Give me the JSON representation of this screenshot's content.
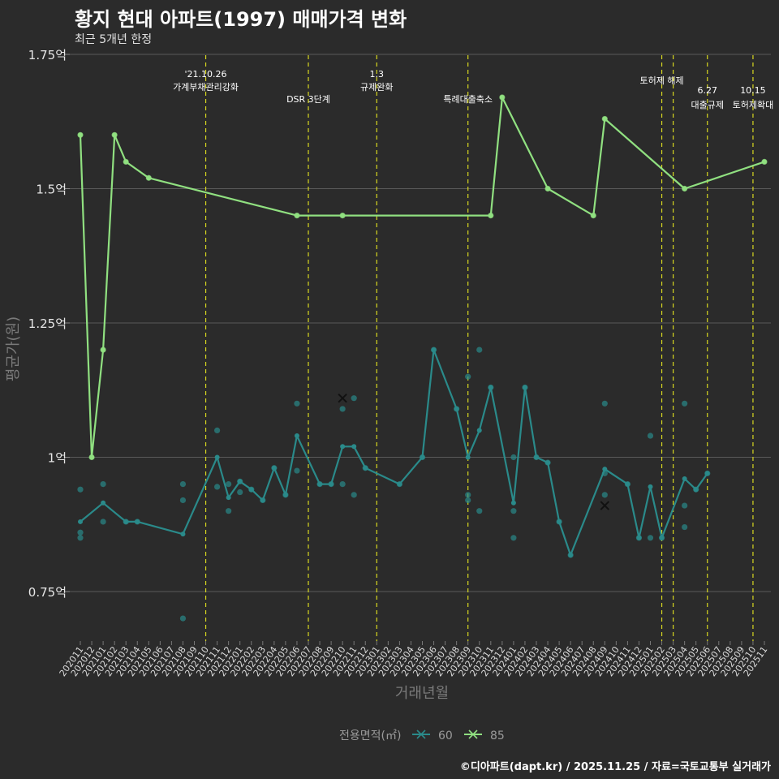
{
  "header": {
    "title": "황지 현대 아파트(1997) 매매가격 변화",
    "subtitle": "최근 5개년 한정"
  },
  "caption": "©디아파트(dapt.kr) / 2025.11.25 / 자료=국토교통부 실거래가",
  "chart_data": {
    "type": "line",
    "title": "황지 현대 아파트(1997) 매매가격 변화",
    "subtitle": "최근 5개년 한정",
    "xlabel": "거래년월",
    "ylabel": "평균가(원)",
    "ylim": [
      0.655,
      1.75
    ],
    "y_ticks": [
      {
        "value": 0.75,
        "label": "0.75억"
      },
      {
        "value": 1.0,
        "label": "1억"
      },
      {
        "value": 1.25,
        "label": "1.25억"
      },
      {
        "value": 1.5,
        "label": "1.5억"
      },
      {
        "value": 1.75,
        "label": "1.75억"
      }
    ],
    "categories": [
      "202011",
      "202012",
      "202101",
      "202102",
      "202103",
      "202104",
      "202105",
      "202106",
      "202107",
      "202108",
      "202109",
      "202110",
      "202111",
      "202112",
      "202201",
      "202202",
      "202203",
      "202204",
      "202205",
      "202206",
      "202207",
      "202208",
      "202209",
      "202210",
      "202211",
      "202212",
      "202301",
      "202302",
      "202303",
      "202304",
      "202305",
      "202306",
      "202307",
      "202308",
      "202309",
      "202310",
      "202311",
      "202312",
      "202401",
      "202402",
      "202403",
      "202404",
      "202405",
      "202406",
      "202407",
      "202408",
      "202409",
      "202410",
      "202411",
      "202412",
      "202501",
      "202502",
      "202503",
      "202504",
      "202505",
      "202506",
      "202507",
      "202508",
      "202509",
      "202510",
      "202511"
    ],
    "legend_title": "전용면적(㎡)",
    "series": [
      {
        "name": "60",
        "color": "#2a8a8a",
        "line": [
          [
            0,
            0.88
          ],
          [
            2,
            0.915
          ],
          [
            4,
            0.88
          ],
          [
            5,
            0.88
          ],
          [
            9,
            0.857
          ],
          [
            12,
            1.0
          ],
          [
            13,
            0.925
          ],
          [
            14,
            0.955
          ],
          [
            15,
            0.94
          ],
          [
            16,
            0.92
          ],
          [
            17,
            0.98
          ],
          [
            18,
            0.93
          ],
          [
            19,
            1.04
          ],
          [
            21,
            0.95
          ],
          [
            22,
            0.95
          ],
          [
            23,
            1.02
          ],
          [
            24,
            1.02
          ],
          [
            25,
            0.98
          ],
          [
            28,
            0.95
          ],
          [
            30,
            1.0
          ],
          [
            31,
            1.2
          ],
          [
            33,
            1.09
          ],
          [
            34,
            1.0
          ],
          [
            35,
            1.05
          ],
          [
            36,
            1.13
          ],
          [
            38,
            0.915
          ],
          [
            39,
            1.13
          ],
          [
            40,
            1.0
          ],
          [
            41,
            0.99
          ],
          [
            42,
            0.88
          ],
          [
            43,
            0.818
          ],
          [
            46,
            0.978
          ],
          [
            48,
            0.95
          ],
          [
            49,
            0.85
          ],
          [
            50,
            0.945
          ],
          [
            51,
            0.85
          ],
          [
            53,
            0.96
          ],
          [
            54,
            0.94
          ],
          [
            55,
            0.97
          ]
        ],
        "points": [
          [
            0,
            0.94
          ],
          [
            0,
            0.86
          ],
          [
            0,
            0.85
          ],
          [
            2,
            0.95
          ],
          [
            2,
            0.88
          ],
          [
            4,
            0.88
          ],
          [
            5,
            0.88
          ],
          [
            9,
            0.95
          ],
          [
            9,
            0.92
          ],
          [
            9,
            0.7
          ],
          [
            12,
            1.05
          ],
          [
            12,
            0.945
          ],
          [
            13,
            0.95
          ],
          [
            13,
            0.9
          ],
          [
            14,
            0.955
          ],
          [
            14,
            0.935
          ],
          [
            15,
            0.94
          ],
          [
            16,
            0.92
          ],
          [
            17,
            0.98
          ],
          [
            18,
            0.93
          ],
          [
            19,
            1.1
          ],
          [
            19,
            0.975
          ],
          [
            21,
            0.95
          ],
          [
            22,
            0.95
          ],
          [
            23,
            0.95
          ],
          [
            23,
            1.09
          ],
          [
            24,
            1.11
          ],
          [
            24,
            0.93
          ],
          [
            25,
            0.98
          ],
          [
            28,
            0.95
          ],
          [
            30,
            1.0
          ],
          [
            31,
            1.2
          ],
          [
            33,
            1.09
          ],
          [
            34,
            1.15
          ],
          [
            34,
            0.93
          ],
          [
            34,
            0.92
          ],
          [
            35,
            1.2
          ],
          [
            35,
            0.9
          ],
          [
            36,
            1.13
          ],
          [
            38,
            1.0
          ],
          [
            38,
            0.9
          ],
          [
            38,
            0.85
          ],
          [
            39,
            1.13
          ],
          [
            40,
            1.0
          ],
          [
            41,
            0.99
          ],
          [
            42,
            0.88
          ],
          [
            43,
            0.818
          ],
          [
            46,
            1.1
          ],
          [
            46,
            0.97
          ],
          [
            46,
            0.93
          ],
          [
            48,
            0.95
          ],
          [
            49,
            0.85
          ],
          [
            50,
            1.04
          ],
          [
            50,
            0.85
          ],
          [
            51,
            0.85
          ],
          [
            53,
            1.1
          ],
          [
            53,
            0.91
          ],
          [
            53,
            0.87
          ],
          [
            54,
            0.94
          ],
          [
            55,
            0.97
          ]
        ],
        "cancelled": [
          [
            23,
            1.11
          ],
          [
            46,
            0.91
          ]
        ]
      },
      {
        "name": "85",
        "color": "#90e080",
        "line": [
          [
            0,
            1.6
          ],
          [
            1,
            1.0
          ],
          [
            2,
            1.2
          ],
          [
            3,
            1.6
          ],
          [
            4,
            1.55
          ],
          [
            6,
            1.52
          ],
          [
            19,
            1.45
          ],
          [
            23,
            1.45
          ],
          [
            36,
            1.45
          ],
          [
            37,
            1.67
          ],
          [
            41,
            1.5
          ],
          [
            45,
            1.45
          ],
          [
            46,
            1.63
          ],
          [
            53,
            1.5
          ],
          [
            60,
            1.55
          ]
        ],
        "points": [
          [
            0,
            1.6
          ],
          [
            1,
            1.0
          ],
          [
            2,
            1.2
          ],
          [
            3,
            1.6
          ],
          [
            4,
            1.55
          ],
          [
            6,
            1.52
          ],
          [
            19,
            1.45
          ],
          [
            23,
            1.45
          ],
          [
            36,
            1.45
          ],
          [
            37,
            1.67
          ],
          [
            41,
            1.5
          ],
          [
            45,
            1.45
          ],
          [
            46,
            1.63
          ],
          [
            53,
            1.5
          ],
          [
            60,
            1.55
          ]
        ],
        "cancelled": []
      }
    ],
    "events": [
      {
        "index": 11,
        "line1": "'21.10.26",
        "line2": "가계부채관리강화"
      },
      {
        "index": 20,
        "line1": "",
        "line2": "DSR 3단계"
      },
      {
        "index": 26,
        "line1": "1.3",
        "line2": "규제완화"
      },
      {
        "index": 34,
        "line1": "",
        "line2": "특례대출축소"
      },
      {
        "index": 51,
        "line1": "",
        "line2": "토허제 해제"
      },
      {
        "index": 52,
        "line1": "",
        "line2": ""
      },
      {
        "index": 55,
        "line1": "6.27",
        "line2": "대출규제"
      },
      {
        "index": 59,
        "line1": "10.15",
        "line2": "토허제확대"
      }
    ]
  }
}
